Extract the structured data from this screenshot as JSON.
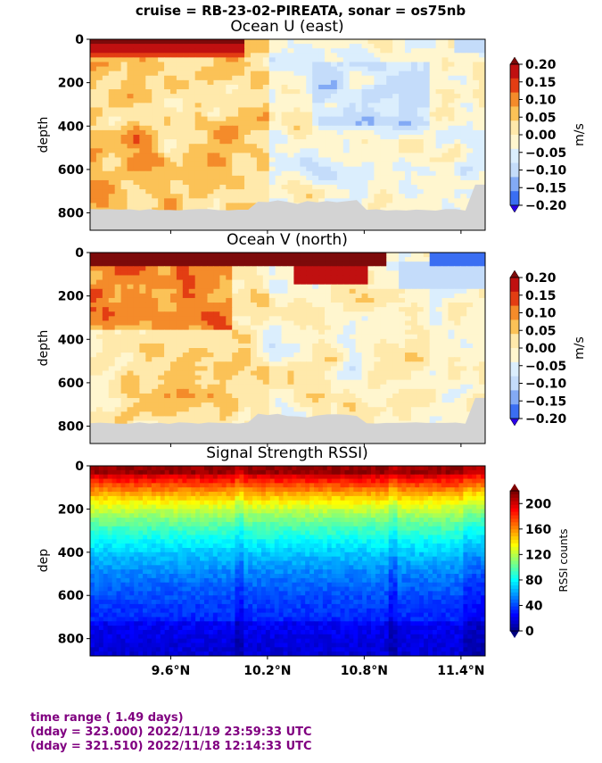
{
  "suptitle": "cruise = RB-23-02-PIREATA,  sonar = os75nb",
  "colors": {
    "land_mask": "#d3d3d3",
    "footer_text": "#800080",
    "velocity_levels": [
      "#2a00e8",
      "#3a6ef2",
      "#83aaf5",
      "#c4dcfa",
      "#dbeefd",
      "#fff6cf",
      "#ffe9ab",
      "#fbc257",
      "#f48b2a",
      "#e33d13",
      "#c01010",
      "#7d0a0a"
    ],
    "jet": [
      "#00007f",
      "#0000ff",
      "#007fff",
      "#00ffff",
      "#7fff7f",
      "#ffff00",
      "#ff7f00",
      "#ff0000",
      "#7f0000"
    ]
  },
  "chart_data": [
    {
      "type": "heatmap",
      "title": "Ocean U (east)",
      "xlabel": "",
      "ylabel": "depth",
      "ylim": [
        880,
        0
      ],
      "yticks": [
        0,
        200,
        400,
        600,
        800
      ],
      "colorbar": {
        "label": "m/s",
        "ticks": [
          "0.20",
          "0.15",
          "0.10",
          "0.05",
          "0.00",
          "−0.05",
          "−0.10",
          "−0.15",
          "−0.20"
        ],
        "range": [
          -0.2,
          0.2
        ]
      }
    },
    {
      "type": "heatmap",
      "title": "Ocean V (north)",
      "xlabel": "",
      "ylabel": "depth",
      "ylim": [
        880,
        0
      ],
      "yticks": [
        0,
        200,
        400,
        600,
        800
      ],
      "colorbar": {
        "label": "m/s",
        "ticks": [
          "0.20",
          "0.15",
          "0.10",
          "0.05",
          "0.00",
          "−0.05",
          "−0.10",
          "−0.15",
          "−0.20"
        ],
        "range": [
          -0.2,
          0.2
        ]
      }
    },
    {
      "type": "heatmap",
      "title": "Signal Strength RSSI)",
      "xlabel": "",
      "ylabel": "dep",
      "ylim": [
        880,
        0
      ],
      "yticks": [
        0,
        200,
        400,
        600,
        800
      ],
      "xlim": [
        9.1,
        11.55
      ],
      "xticks": [
        9.6,
        10.2,
        10.8,
        11.4
      ],
      "xtick_labels": [
        "9.6°N",
        "10.2°N",
        "10.8°N",
        "11.4°N"
      ],
      "colorbar": {
        "label": "RSSI counts",
        "ticks": [
          "200",
          "160",
          "120",
          "80",
          "40",
          "0"
        ],
        "range": [
          0,
          220
        ]
      }
    }
  ],
  "footer": {
    "line1": "time range ( 1.49 days)",
    "line2": "(dday = 323.000) 2022/11/19 23:59:33 UTC",
    "line3": "(dday = 321.510) 2022/11/18 12:14:33 UTC"
  }
}
